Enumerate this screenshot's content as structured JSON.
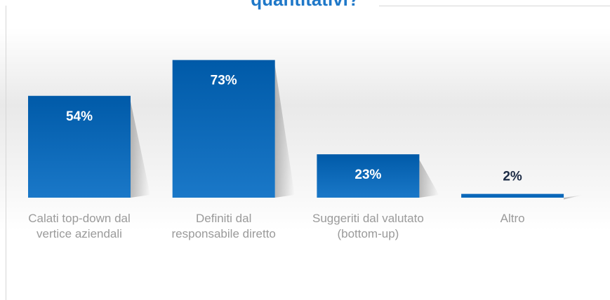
{
  "chart_data": {
    "type": "bar",
    "title": "quantitativi?",
    "categories": [
      "Calati top-down dal vertice aziendali",
      "Definiti dal responsabile diretto",
      "Suggeriti dal valutato (bottom-up)",
      "Altro"
    ],
    "values": [
      54,
      73,
      23,
      2
    ],
    "value_labels": [
      "54%",
      "73%",
      "23%",
      "2%"
    ],
    "color": "#0a68ba"
  }
}
